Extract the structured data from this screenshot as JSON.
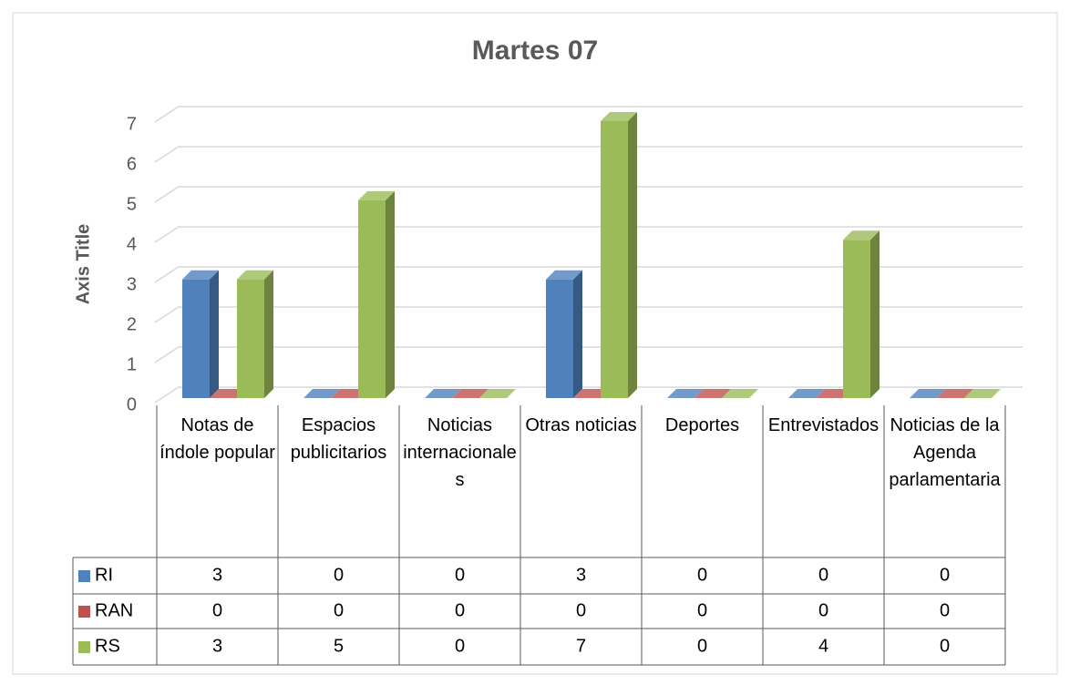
{
  "chart_data": {
    "type": "bar",
    "title": "Martes 07",
    "y_axis_label": "Axis Title",
    "categories": [
      "Notas de índole popular",
      "Espacios publicitarios",
      "Noticias internacionales",
      "Otras noticias",
      "Deportes",
      "Entrevistados",
      "Noticias de la Agenda parlamentaria"
    ],
    "series": [
      {
        "name": "RI",
        "color": "#4f81bd",
        "values": [
          3,
          0,
          0,
          3,
          0,
          0,
          0
        ]
      },
      {
        "name": "RAN",
        "color": "#c0504d",
        "values": [
          0,
          0,
          0,
          0,
          0,
          0,
          0
        ]
      },
      {
        "name": "RS",
        "color": "#9bbb59",
        "values": [
          3,
          5,
          0,
          7,
          0,
          4,
          0
        ]
      }
    ],
    "ylim": [
      0,
      7
    ],
    "yticks": [
      0,
      1,
      2,
      3,
      4,
      5,
      6,
      7
    ],
    "grid": true,
    "data_table": true
  }
}
